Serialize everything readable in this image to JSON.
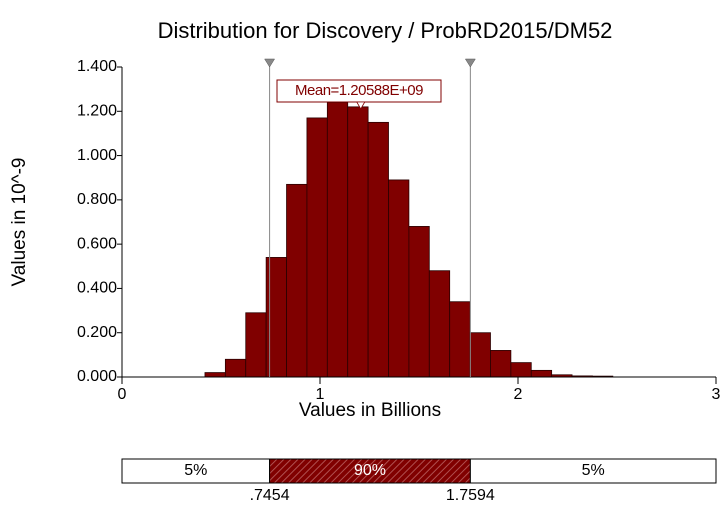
{
  "chart_data": {
    "type": "histogram",
    "title": "Distribution for Discovery / ProbRD2015/DM52",
    "x_label": "Values in Billions",
    "y_label": "Values in 10^-9",
    "bins": [
      0.419,
      0.522,
      0.625,
      0.728,
      0.831,
      0.934,
      1.037,
      1.14,
      1.243,
      1.346,
      1.449,
      1.552,
      1.655,
      1.758,
      1.861,
      1.964,
      2.067,
      2.17,
      2.273,
      2.376,
      2.479
    ],
    "values": [
      0.02,
      0.08,
      0.29,
      0.54,
      0.87,
      1.17,
      1.24,
      1.22,
      1.15,
      0.89,
      0.68,
      0.48,
      0.34,
      0.2,
      0.12,
      0.065,
      0.03,
      0.01,
      0.005,
      0.004
    ],
    "color": "#800000",
    "xlim": [
      0,
      3
    ],
    "xticks": [
      0,
      1,
      2,
      3
    ],
    "ylim": [
      0,
      1.4
    ],
    "yticks": [
      {
        "value": 0,
        "label": "0.000"
      },
      {
        "value": 0.2,
        "label": "0.200"
      },
      {
        "value": 0.4,
        "label": "0.400"
      },
      {
        "value": 0.6,
        "label": "0.600"
      },
      {
        "value": 0.8,
        "label": "0.800"
      },
      {
        "value": 1.0,
        "label": "1.000"
      },
      {
        "value": 1.2,
        "label": "1.200"
      },
      {
        "value": 1.4,
        "label": "1.400"
      }
    ],
    "mean": {
      "value": 1.20588,
      "label": "Mean=1.20588E+09"
    },
    "delimiters": [
      {
        "value": 0.7454,
        "label": ".7454"
      },
      {
        "value": 1.7594,
        "label": "1.7594"
      }
    ],
    "percent_bands": [
      {
        "value": 5,
        "label": "5%"
      },
      {
        "value": 90,
        "label": "90%"
      },
      {
        "value": 5,
        "label": "5%"
      }
    ]
  }
}
